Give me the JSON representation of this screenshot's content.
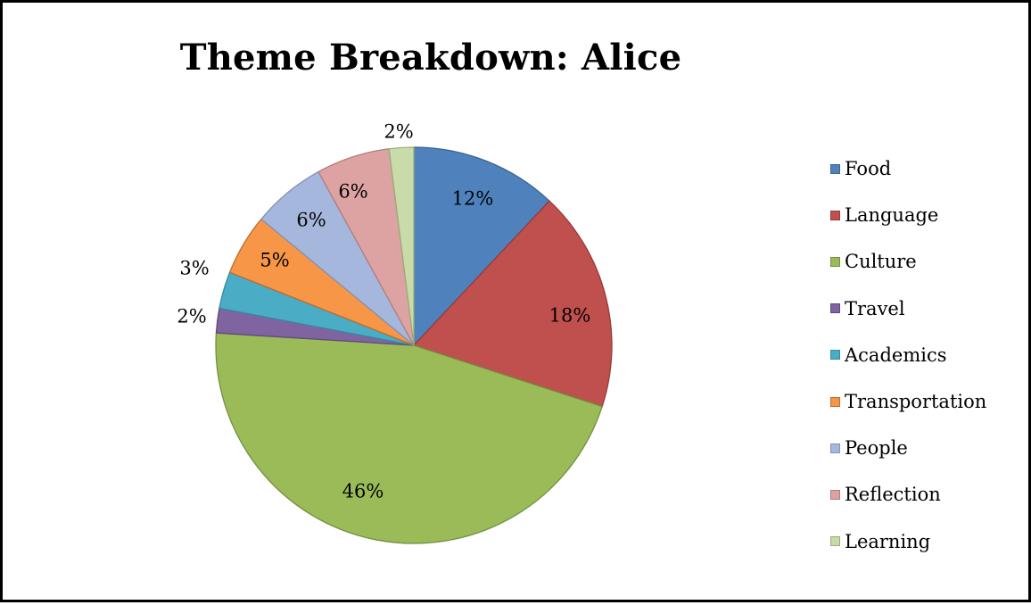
{
  "chart_data": {
    "type": "pie",
    "title": "Theme Breakdown: Alice",
    "legend_position": "right",
    "categories": [
      "Food",
      "Language",
      "Culture",
      "Travel",
      "Academics",
      "Transportation",
      "People",
      "Reflection",
      "Learning"
    ],
    "values": [
      12,
      18,
      46,
      2,
      3,
      5,
      6,
      6,
      2
    ],
    "labels": [
      "12%",
      "18%",
      "46%",
      "2%",
      "3%",
      "5%",
      "6%",
      "6%",
      "2%"
    ],
    "colors": [
      "#4F81BD",
      "#C0504D",
      "#9BBB59",
      "#8064A2",
      "#4BACC6",
      "#F79646",
      "#A5B7DD",
      "#DDA3A2",
      "#C8DBA8"
    ],
    "borders": [
      "#3A6493",
      "#943C3A",
      "#72903F",
      "#5E4A7D",
      "#358A9F",
      "#B86E2F",
      "#7F93B8",
      "#B57C7B",
      "#98AE78"
    ]
  }
}
